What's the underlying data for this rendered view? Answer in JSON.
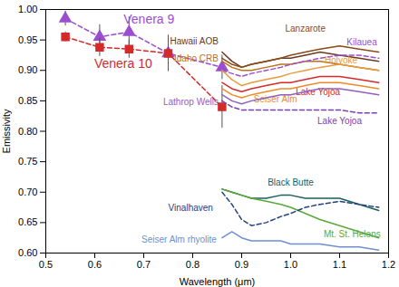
{
  "chart_data": {
    "type": "line",
    "x_label": "Wavelength (μm)",
    "y_label": "Emissivity",
    "xlim": [
      0.5,
      1.2
    ],
    "xticks": [
      0.5,
      0.6,
      0.7,
      0.8,
      0.9,
      {
        "value": 1,
        "label": "1.0"
      },
      1.1,
      1.2
    ],
    "ylim": [
      0.6,
      1.0
    ],
    "yticks": [
      {
        "value": 0.6,
        "label": "0.60"
      },
      0.65,
      {
        "value": 0.7,
        "label": "0.70"
      },
      0.75,
      {
        "value": 0.8,
        "label": "0.80"
      },
      0.85,
      {
        "value": 0.9,
        "label": "0.90"
      },
      0.95,
      {
        "value": 1,
        "label": "1.00"
      }
    ],
    "grid": false,
    "series": [
      {
        "name": "Venera 9",
        "color": "#9b4fd0",
        "marker": "triangle",
        "line_style": "dashed",
        "x": [
          0.54,
          0.61,
          0.67,
          0.75,
          0.86
        ],
        "values": [
          0.985,
          0.955,
          0.963,
          0.928,
          0.905
        ],
        "errors": [
          0.012,
          0.02,
          0.025,
          0.03,
          0.02
        ]
      },
      {
        "name": "Venera 10",
        "color": "#d42a2a",
        "marker": "square",
        "line_style": "dashed",
        "x": [
          0.54,
          0.61,
          0.67,
          0.75,
          0.86
        ],
        "values": [
          0.955,
          0.938,
          0.935,
          0.928,
          0.84
        ],
        "errors": [
          0.008,
          0.015,
          0.015,
          0.015,
          0.035
        ]
      },
      {
        "name": "Hawaii AOB",
        "color": "#6b3a1e",
        "line_style": "solid",
        "x": [
          0.86,
          0.88,
          0.9,
          0.92,
          0.95,
          0.98,
          1.0,
          1.03,
          1.06,
          1.1,
          1.14,
          1.18
        ],
        "values": [
          0.93,
          0.915,
          0.905,
          0.91,
          0.915,
          0.92,
          0.92,
          0.925,
          0.93,
          0.925,
          0.92,
          0.915
        ]
      },
      {
        "name": "Idaho CRB",
        "color": "#c0701a",
        "line_style": "solid",
        "x": [
          0.86,
          0.88,
          0.9,
          0.92,
          0.95,
          0.98,
          1.0,
          1.03,
          1.06,
          1.1,
          1.14,
          1.18
        ],
        "values": [
          0.915,
          0.905,
          0.9,
          0.9,
          0.905,
          0.91,
          0.91,
          0.915,
          0.915,
          0.91,
          0.905,
          0.9
        ]
      },
      {
        "name": "Lanzarote",
        "color": "#8b4a1a",
        "line_style": "solid",
        "x": [
          0.86,
          0.88,
          0.9,
          0.92,
          0.95,
          0.98,
          1.0,
          1.03,
          1.06,
          1.1,
          1.14,
          1.18
        ],
        "values": [
          0.92,
          0.91,
          0.905,
          0.91,
          0.915,
          0.92,
          0.925,
          0.93,
          0.935,
          0.94,
          0.935,
          0.93
        ]
      },
      {
        "name": "Kilauea",
        "color": "#9b4fd0",
        "line_style": "dashed",
        "x": [
          0.86,
          0.88,
          0.9,
          0.92,
          0.95,
          0.98,
          1.0,
          1.03,
          1.06,
          1.1,
          1.14,
          1.18
        ],
        "values": [
          0.9,
          0.895,
          0.89,
          0.895,
          0.9,
          0.905,
          0.91,
          0.915,
          0.92,
          0.925,
          0.925,
          0.92
        ]
      },
      {
        "name": "Holyoke",
        "color": "#e89a3c",
        "line_style": "solid",
        "x": [
          0.86,
          0.88,
          0.9,
          0.92,
          0.95,
          0.98,
          1.0,
          1.03,
          1.06,
          1.1,
          1.14,
          1.18
        ],
        "values": [
          0.9,
          0.885,
          0.875,
          0.88,
          0.885,
          0.89,
          0.895,
          0.9,
          0.905,
          0.91,
          0.905,
          0.9
        ]
      },
      {
        "name": "Lake Yojoa",
        "color": "#d42a2a",
        "line_style": "solid",
        "x": [
          0.86,
          0.88,
          0.9,
          0.92,
          0.95,
          0.98,
          1.0,
          1.03,
          1.06,
          1.1,
          1.14,
          1.18
        ],
        "values": [
          0.88,
          0.87,
          0.865,
          0.87,
          0.875,
          0.88,
          0.88,
          0.885,
          0.89,
          0.89,
          0.885,
          0.88
        ]
      },
      {
        "name": "Seiser Alm",
        "color": "#f08a28",
        "line_style": "solid",
        "x": [
          0.86,
          0.88,
          0.9,
          0.92,
          0.95,
          0.98,
          1.0,
          1.03,
          1.06,
          1.1,
          1.14,
          1.18
        ],
        "values": [
          0.87,
          0.86,
          0.855,
          0.86,
          0.865,
          0.87,
          0.87,
          0.875,
          0.88,
          0.88,
          0.875,
          0.87
        ]
      },
      {
        "name": "Lathrop Wells",
        "color": "#8f5fc0",
        "line_style": "solid",
        "x": [
          0.86,
          0.88,
          0.9,
          0.92,
          0.95,
          0.98,
          1.0,
          1.03,
          1.06,
          1.1,
          1.14,
          1.18
        ],
        "values": [
          0.86,
          0.85,
          0.845,
          0.85,
          0.855,
          0.86,
          0.86,
          0.865,
          0.87,
          0.87,
          0.865,
          0.86
        ]
      },
      {
        "name": "Lake Yojoa",
        "color": "#7a3fb0",
        "line_style": "dashed",
        "x": [
          0.86,
          0.88,
          0.9,
          0.92,
          0.95,
          0.98,
          1.0,
          1.03,
          1.06,
          1.1,
          1.14,
          1.18
        ],
        "values": [
          0.85,
          0.84,
          0.835,
          0.835,
          0.835,
          0.835,
          0.835,
          0.835,
          0.835,
          0.835,
          0.83,
          0.83
        ]
      },
      {
        "name": "Black Butte",
        "color": "#1b5e5e",
        "line_style": "solid",
        "x": [
          0.86,
          0.88,
          0.9,
          0.92,
          0.95,
          0.98,
          1.0,
          1.03,
          1.06,
          1.1,
          1.14,
          1.18
        ],
        "values": [
          0.705,
          0.7,
          0.695,
          0.69,
          0.69,
          0.695,
          0.695,
          0.69,
          0.69,
          0.69,
          0.68,
          0.67
        ]
      },
      {
        "name": "Mt. St. Helens",
        "color": "#5aa838",
        "line_style": "solid",
        "x": [
          0.86,
          0.88,
          0.9,
          0.92,
          0.95,
          0.98,
          1.0,
          1.03,
          1.06,
          1.1,
          1.14,
          1.18
        ],
        "values": [
          0.705,
          0.7,
          0.695,
          0.69,
          0.685,
          0.68,
          0.675,
          0.665,
          0.655,
          0.645,
          0.635,
          0.625
        ]
      },
      {
        "name": "Vinalhaven",
        "color": "#23407f",
        "line_style": "dashed",
        "x": [
          0.86,
          0.88,
          0.9,
          0.92,
          0.95,
          0.98,
          1.0,
          1.03,
          1.06,
          1.1,
          1.14,
          1.18
        ],
        "values": [
          0.7,
          0.68,
          0.655,
          0.645,
          0.65,
          0.66,
          0.665,
          0.675,
          0.68,
          0.685,
          0.68,
          0.675
        ]
      },
      {
        "name": "Seiser Alm rhyolite",
        "color": "#6e8fd0",
        "line_style": "solid",
        "x": [
          0.86,
          0.88,
          0.9,
          0.92,
          0.95,
          0.98,
          1.0,
          1.03,
          1.06,
          1.1,
          1.14,
          1.18
        ],
        "values": [
          0.625,
          0.635,
          0.625,
          0.62,
          0.62,
          0.62,
          0.615,
          0.615,
          0.615,
          0.61,
          0.61,
          0.605
        ]
      }
    ]
  }
}
